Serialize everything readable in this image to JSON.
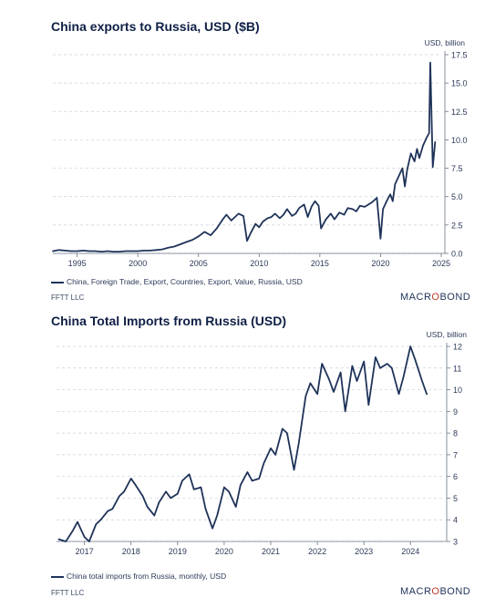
{
  "charts": [
    {
      "title": "China exports to Russia, USD ($B)",
      "legend": "China, Foreign Trade, Export, Countries, Export, Value, Russia, USD",
      "source": "FFTT LLC",
      "brand": {
        "left": "MACR",
        "accent": "O",
        "right": "BOND"
      }
    },
    {
      "title": "China Total Imports from Russia (USD)",
      "legend": "China total imports from Russia, monthly, USD",
      "source": "FFTT LLC",
      "brand": {
        "left": "MACR",
        "accent": "O",
        "right": "BOND"
      }
    }
  ],
  "chart_data": [
    {
      "type": "line",
      "title": "China exports to Russia, USD ($B)",
      "ylabel": "USD, billion",
      "xlim": [
        1993.0,
        2025.0
      ],
      "ylim": [
        0,
        17.5
      ],
      "x_ticks": [
        1995,
        2000,
        2005,
        2010,
        2015,
        2020,
        2025
      ],
      "x_tick_labels": [
        "1995",
        "2000",
        "2005",
        "2010",
        "2015",
        "2020",
        "2025"
      ],
      "y_ticks": [
        0,
        2.5,
        5,
        7.5,
        10,
        12.5,
        15,
        17.5
      ],
      "y_tick_labels": [
        "0.0",
        "2.5",
        "5.0",
        "7.5",
        "10.0",
        "12.5",
        "15.0",
        "17.5"
      ],
      "series": [
        {
          "name": "China, Foreign Trade, Export, Countries, Export, Value, Russia, USD",
          "x": [
            1993.0,
            1993.5,
            1994.0,
            1994.5,
            1995.0,
            1995.5,
            1996.0,
            1996.5,
            1997.0,
            1997.5,
            1998.0,
            1998.5,
            1999.0,
            1999.5,
            2000.0,
            2000.5,
            2001.0,
            2001.5,
            2002.0,
            2002.5,
            2003.0,
            2003.5,
            2004.0,
            2004.5,
            2005.0,
            2005.5,
            2006.0,
            2006.5,
            2007.0,
            2007.3,
            2007.7,
            2008.0,
            2008.3,
            2008.7,
            2009.0,
            2009.3,
            2009.7,
            2010.0,
            2010.3,
            2010.7,
            2011.0,
            2011.3,
            2011.7,
            2012.0,
            2012.3,
            2012.7,
            2013.0,
            2013.3,
            2013.7,
            2014.0,
            2014.3,
            2014.6,
            2014.9,
            2015.1,
            2015.5,
            2015.9,
            2016.2,
            2016.6,
            2017.0,
            2017.3,
            2017.7,
            2018.0,
            2018.3,
            2018.7,
            2019.0,
            2019.3,
            2019.7,
            2020.0,
            2020.2,
            2020.5,
            2020.8,
            2021.0,
            2021.2,
            2021.5,
            2021.8,
            2022.0,
            2022.2,
            2022.5,
            2022.8,
            2023.0,
            2023.2,
            2023.5,
            2023.8,
            2024.0,
            2024.1,
            2024.2,
            2024.3,
            2024.5
          ],
          "y": [
            0.2,
            0.3,
            0.25,
            0.2,
            0.2,
            0.25,
            0.2,
            0.2,
            0.15,
            0.2,
            0.15,
            0.15,
            0.2,
            0.2,
            0.2,
            0.25,
            0.25,
            0.3,
            0.35,
            0.5,
            0.6,
            0.8,
            1.0,
            1.2,
            1.5,
            1.9,
            1.6,
            2.2,
            3.0,
            3.4,
            2.9,
            3.2,
            3.5,
            3.3,
            1.1,
            1.8,
            2.6,
            2.3,
            2.8,
            3.1,
            3.2,
            3.5,
            3.1,
            3.4,
            3.9,
            3.3,
            3.5,
            4.0,
            4.3,
            3.2,
            4.1,
            4.6,
            4.2,
            2.2,
            3.0,
            3.5,
            3.0,
            3.6,
            3.4,
            4.0,
            3.9,
            3.7,
            4.2,
            4.1,
            4.3,
            4.5,
            4.9,
            1.3,
            3.9,
            4.6,
            5.2,
            4.6,
            6.1,
            6.8,
            7.5,
            5.9,
            7.4,
            8.8,
            8.1,
            9.2,
            8.4,
            9.5,
            10.2,
            10.6,
            16.8,
            12.0,
            7.6,
            9.8
          ]
        }
      ]
    },
    {
      "type": "line",
      "title": "China Total Imports from Russia (USD)",
      "ylabel": "USD, billion",
      "xlim": [
        2016.4,
        2024.7
      ],
      "ylim": [
        3,
        12
      ],
      "x_ticks": [
        2017,
        2018,
        2019,
        2020,
        2021,
        2022,
        2023,
        2024
      ],
      "x_tick_labels": [
        "2017",
        "2018",
        "2019",
        "2020",
        "2021",
        "2022",
        "2023",
        "2024"
      ],
      "y_ticks": [
        3,
        4,
        5,
        6,
        7,
        8,
        9,
        10,
        11,
        12
      ],
      "y_tick_labels": [
        "3",
        "4",
        "5",
        "6",
        "7",
        "8",
        "9",
        "10",
        "11",
        "12"
      ],
      "series": [
        {
          "name": "China total imports from Russia, monthly, USD",
          "x": [
            2016.45,
            2016.6,
            2016.75,
            2016.85,
            2017.0,
            2017.1,
            2017.25,
            2017.35,
            2017.5,
            2017.6,
            2017.75,
            2017.85,
            2018.0,
            2018.1,
            2018.25,
            2018.35,
            2018.5,
            2018.6,
            2018.75,
            2018.85,
            2019.0,
            2019.1,
            2019.25,
            2019.35,
            2019.5,
            2019.6,
            2019.75,
            2019.85,
            2020.0,
            2020.1,
            2020.25,
            2020.35,
            2020.5,
            2020.6,
            2020.75,
            2020.85,
            2021.0,
            2021.1,
            2021.25,
            2021.35,
            2021.5,
            2021.6,
            2021.75,
            2021.85,
            2022.0,
            2022.1,
            2022.25,
            2022.35,
            2022.5,
            2022.6,
            2022.75,
            2022.85,
            2023.0,
            2023.1,
            2023.25,
            2023.35,
            2023.5,
            2023.6,
            2023.75,
            2023.85,
            2024.0,
            2024.1,
            2024.25,
            2024.35
          ],
          "y": [
            3.1,
            3.0,
            3.5,
            3.9,
            3.2,
            3.0,
            3.8,
            4.0,
            4.4,
            4.5,
            5.1,
            5.3,
            5.9,
            5.6,
            5.1,
            4.6,
            4.2,
            4.8,
            5.3,
            5.0,
            5.2,
            5.8,
            6.1,
            5.4,
            5.5,
            4.5,
            3.6,
            4.2,
            5.5,
            5.3,
            4.6,
            5.6,
            6.2,
            5.8,
            5.9,
            6.6,
            7.3,
            7.0,
            8.2,
            8.0,
            6.3,
            7.5,
            9.7,
            10.3,
            9.8,
            11.2,
            10.5,
            9.9,
            10.8,
            9.0,
            11.1,
            10.4,
            11.3,
            9.3,
            11.5,
            11.0,
            11.2,
            11.0,
            9.8,
            10.6,
            12.0,
            11.4,
            10.4,
            9.8
          ]
        }
      ]
    }
  ]
}
